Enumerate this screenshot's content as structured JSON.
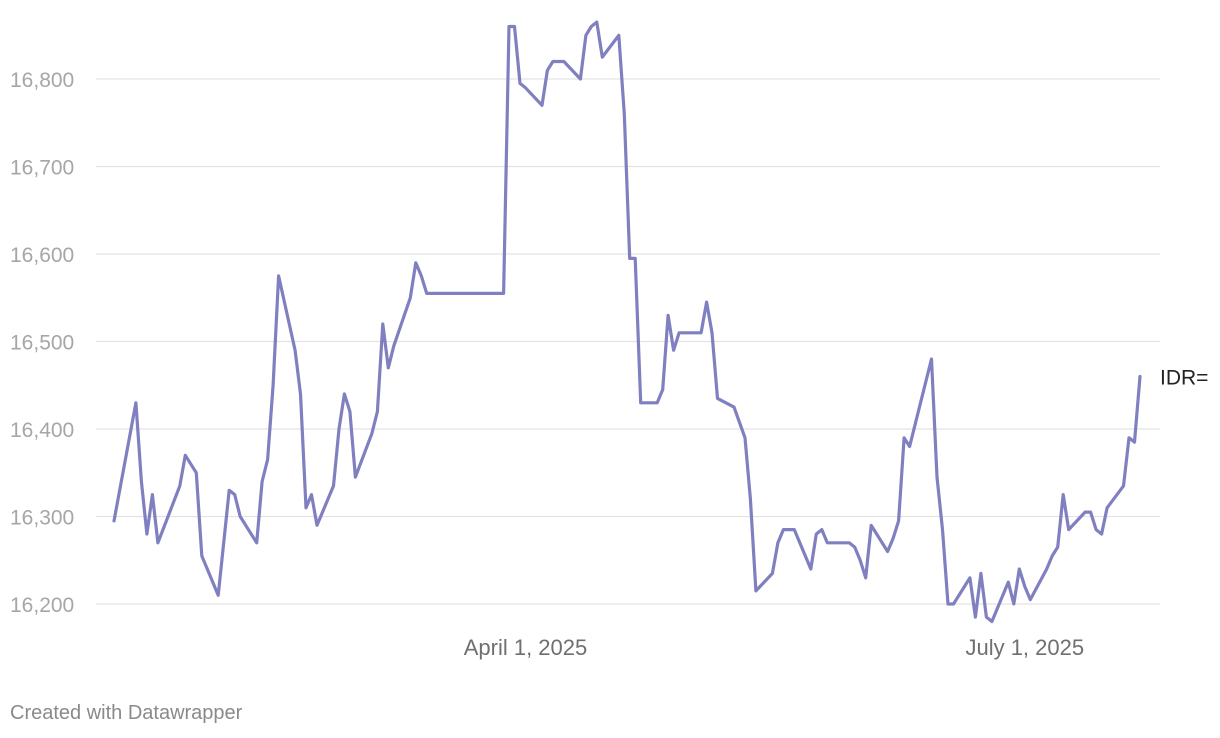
{
  "chart_data": {
    "type": "line",
    "title": "",
    "xlabel": "",
    "ylabel": "",
    "ylim": [
      16180,
      16870
    ],
    "yticks": [
      16200,
      16300,
      16400,
      16500,
      16600,
      16700,
      16800
    ],
    "ytick_labels": [
      "16,200",
      "16,300",
      "16,400",
      "16,500",
      "16,600",
      "16,700",
      "16,800"
    ],
    "xticks": [
      {
        "date": "2025-04-01",
        "label": "April 1, 2025"
      },
      {
        "date": "2025-07-01",
        "label": "July 1, 2025"
      }
    ],
    "grid": true,
    "line_color": "#8080c0",
    "series": [
      {
        "name": "IDR=",
        "points": [
          [
            "2025-01-16",
            16295
          ],
          [
            "2025-01-20",
            16430
          ],
          [
            "2025-01-21",
            16340
          ],
          [
            "2025-01-22",
            16280
          ],
          [
            "2025-01-23",
            16325
          ],
          [
            "2025-01-24",
            16270
          ],
          [
            "2025-01-28",
            16335
          ],
          [
            "2025-01-29",
            16370
          ],
          [
            "2025-01-31",
            16350
          ],
          [
            "2025-02-01",
            16255
          ],
          [
            "2025-02-04",
            16210
          ],
          [
            "2025-02-06",
            16330
          ],
          [
            "2025-02-07",
            16325
          ],
          [
            "2025-02-08",
            16300
          ],
          [
            "2025-02-11",
            16270
          ],
          [
            "2025-02-12",
            16340
          ],
          [
            "2025-02-13",
            16365
          ],
          [
            "2025-02-14",
            16450
          ],
          [
            "2025-02-15",
            16575
          ],
          [
            "2025-02-18",
            16490
          ],
          [
            "2025-02-19",
            16440
          ],
          [
            "2025-02-20",
            16310
          ],
          [
            "2025-02-21",
            16325
          ],
          [
            "2025-02-22",
            16290
          ],
          [
            "2025-02-25",
            16335
          ],
          [
            "2025-02-26",
            16400
          ],
          [
            "2025-02-27",
            16440
          ],
          [
            "2025-02-28",
            16420
          ],
          [
            "2025-03-01",
            16345
          ],
          [
            "2025-03-04",
            16395
          ],
          [
            "2025-03-05",
            16420
          ],
          [
            "2025-03-06",
            16520
          ],
          [
            "2025-03-07",
            16470
          ],
          [
            "2025-03-08",
            16495
          ],
          [
            "2025-03-11",
            16550
          ],
          [
            "2025-03-12",
            16590
          ],
          [
            "2025-03-13",
            16575
          ],
          [
            "2025-03-14",
            16555
          ],
          [
            "2025-03-28",
            16555
          ],
          [
            "2025-03-29",
            16860
          ],
          [
            "2025-03-30",
            16860
          ],
          [
            "2025-03-31",
            16795
          ],
          [
            "2025-04-01",
            16790
          ],
          [
            "2025-04-04",
            16770
          ],
          [
            "2025-04-05",
            16810
          ],
          [
            "2025-04-06",
            16820
          ],
          [
            "2025-04-08",
            16820
          ],
          [
            "2025-04-11",
            16800
          ],
          [
            "2025-04-12",
            16850
          ],
          [
            "2025-04-13",
            16860
          ],
          [
            "2025-04-14",
            16865
          ],
          [
            "2025-04-15",
            16825
          ],
          [
            "2025-04-18",
            16850
          ],
          [
            "2025-04-19",
            16760
          ],
          [
            "2025-04-20",
            16595
          ],
          [
            "2025-04-21",
            16595
          ],
          [
            "2025-04-22",
            16430
          ],
          [
            "2025-04-25",
            16430
          ],
          [
            "2025-04-26",
            16445
          ],
          [
            "2025-04-27",
            16530
          ],
          [
            "2025-04-28",
            16490
          ],
          [
            "2025-04-29",
            16510
          ],
          [
            "2025-05-03",
            16510
          ],
          [
            "2025-05-04",
            16545
          ],
          [
            "2025-05-05",
            16510
          ],
          [
            "2025-05-06",
            16435
          ],
          [
            "2025-05-09",
            16425
          ],
          [
            "2025-05-11",
            16390
          ],
          [
            "2025-05-12",
            16320
          ],
          [
            "2025-05-13",
            16215
          ],
          [
            "2025-05-16",
            16235
          ],
          [
            "2025-05-17",
            16270
          ],
          [
            "2025-05-18",
            16285
          ],
          [
            "2025-05-20",
            16285
          ],
          [
            "2025-05-23",
            16240
          ],
          [
            "2025-05-24",
            16280
          ],
          [
            "2025-05-25",
            16285
          ],
          [
            "2025-05-26",
            16270
          ],
          [
            "2025-05-30",
            16270
          ],
          [
            "2025-05-31",
            16265
          ],
          [
            "2025-06-01",
            16250
          ],
          [
            "2025-06-02",
            16230
          ],
          [
            "2025-06-03",
            16290
          ],
          [
            "2025-06-06",
            16260
          ],
          [
            "2025-06-07",
            16275
          ],
          [
            "2025-06-08",
            16295
          ],
          [
            "2025-06-09",
            16390
          ],
          [
            "2025-06-10",
            16380
          ],
          [
            "2025-06-14",
            16480
          ],
          [
            "2025-06-15",
            16345
          ],
          [
            "2025-06-16",
            16285
          ],
          [
            "2025-06-17",
            16200
          ],
          [
            "2025-06-18",
            16200
          ],
          [
            "2025-06-21",
            16230
          ],
          [
            "2025-06-22",
            16185
          ],
          [
            "2025-06-23",
            16235
          ],
          [
            "2025-06-24",
            16185
          ],
          [
            "2025-06-25",
            16180
          ],
          [
            "2025-06-28",
            16225
          ],
          [
            "2025-06-29",
            16200
          ],
          [
            "2025-06-30",
            16240
          ],
          [
            "2025-07-01",
            16220
          ],
          [
            "2025-07-02",
            16205
          ],
          [
            "2025-07-05",
            16240
          ],
          [
            "2025-07-06",
            16255
          ],
          [
            "2025-07-07",
            16265
          ],
          [
            "2025-07-08",
            16325
          ],
          [
            "2025-07-09",
            16285
          ],
          [
            "2025-07-12",
            16305
          ],
          [
            "2025-07-13",
            16305
          ],
          [
            "2025-07-14",
            16285
          ],
          [
            "2025-07-15",
            16280
          ],
          [
            "2025-07-16",
            16310
          ],
          [
            "2025-07-19",
            16335
          ],
          [
            "2025-07-20",
            16390
          ],
          [
            "2025-07-21",
            16385
          ],
          [
            "2025-07-22",
            16460
          ]
        ]
      }
    ]
  },
  "footer": {
    "credit": "Created with Datawrapper"
  }
}
